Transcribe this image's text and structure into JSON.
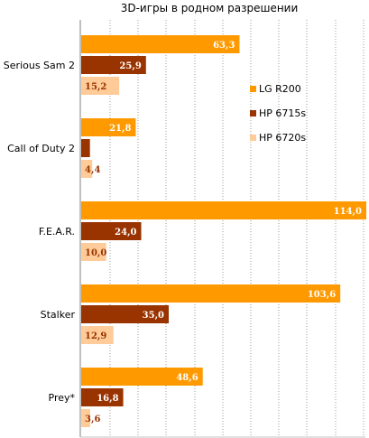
{
  "chart_data": {
    "type": "bar",
    "orientation": "horizontal",
    "title": "3D-игры в родном разрешении",
    "categories": [
      "Serious Sam 2",
      "Call of Duty 2",
      "F.E.A.R.",
      "Stalker",
      "Prey*"
    ],
    "series": [
      {
        "name": "LG R200",
        "color": "#ff9900",
        "label_color": "#ffffff",
        "values": [
          63.3,
          21.8,
          114.0,
          103.6,
          48.6
        ],
        "labels": [
          "63,3",
          "21,8",
          "114,0",
          "103,6",
          "48,6"
        ]
      },
      {
        "name": "HP 6715s",
        "color": "#993300",
        "label_color": "#ffffff",
        "values": [
          25.9,
          3.5,
          24.0,
          35.0,
          16.8
        ],
        "labels": [
          "25,9",
          "",
          "24,0",
          "35,0",
          "16,8"
        ]
      },
      {
        "name": "HP 6720s",
        "color": "#ffcc99",
        "label_color": "#993300",
        "values": [
          15.2,
          4.4,
          10.0,
          12.9,
          3.6
        ],
        "labels": [
          "15,2",
          "4,4",
          "10,0",
          "12,9",
          "3,6"
        ]
      }
    ],
    "xlim": [
      0,
      114
    ],
    "grid": true,
    "legend_position": "right"
  }
}
